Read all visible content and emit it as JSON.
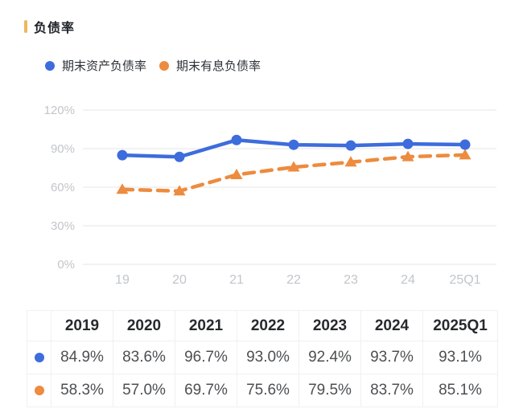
{
  "title": {
    "text": "负债率",
    "accent_color": "#EBB95C"
  },
  "legend": [
    {
      "label": "期末资产负债率",
      "color": "#3D6CDC",
      "marker": "circle"
    },
    {
      "label": "期末有息负债率",
      "color": "#ED8B3E",
      "marker": "circle"
    }
  ],
  "chart_data": {
    "type": "line",
    "title": "负债率",
    "categories": [
      "19",
      "20",
      "21",
      "22",
      "23",
      "24",
      "25Q1"
    ],
    "series": [
      {
        "name": "期末资产负债率",
        "color": "#3D6CDC",
        "line_style": "solid",
        "marker": "circle",
        "values": [
          84.9,
          83.6,
          96.7,
          93.0,
          92.4,
          93.7,
          93.1
        ]
      },
      {
        "name": "期末有息负债率",
        "color": "#ED8B3E",
        "line_style": "dashed",
        "marker": "triangle",
        "values": [
          58.3,
          57.0,
          69.7,
          75.6,
          79.5,
          83.7,
          85.1
        ]
      }
    ],
    "ylim": [
      0,
      120
    ],
    "ytick_step": 30,
    "ytick_labels": [
      "0%",
      "30%",
      "60%",
      "90%",
      "120%"
    ],
    "xlabel": "",
    "ylabel": "",
    "grid": true,
    "legend_position": "top"
  },
  "table": {
    "headers": [
      "",
      "2019",
      "2020",
      "2021",
      "2022",
      "2023",
      "2024",
      "2025Q1"
    ],
    "rows": [
      {
        "marker_color": "#3D6CDC",
        "series": "期末资产负债率",
        "values": [
          "84.9%",
          "83.6%",
          "96.7%",
          "93.0%",
          "92.4%",
          "93.7%",
          "93.1%"
        ]
      },
      {
        "marker_color": "#ED8B3E",
        "series": "期末有息负债率",
        "values": [
          "58.3%",
          "57.0%",
          "69.7%",
          "75.6%",
          "79.5%",
          "83.7%",
          "85.1%"
        ]
      }
    ]
  },
  "colors": {
    "grid_line": "#ededee",
    "axis_label": "#c2c5ca",
    "table_border": "#f0f0f1",
    "background": "#ffffff"
  }
}
